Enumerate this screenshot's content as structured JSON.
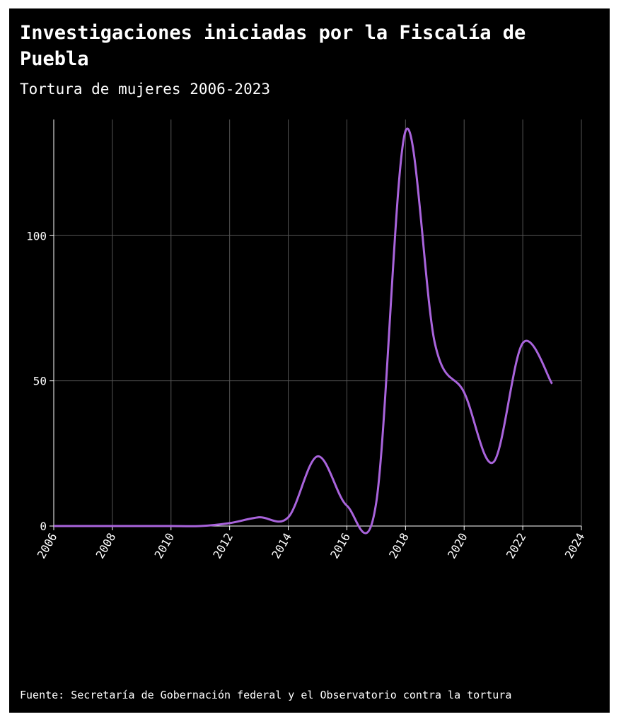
{
  "chart_data": {
    "type": "line",
    "title": [
      "Investigaciones iniciadas por la Fiscalía de",
      "Puebla"
    ],
    "subtitle": "Tortura de mujeres 2006-2023",
    "source": "Fuente: Secretaría de Gobernación federal y el Observatorio contra la tortura",
    "x": [
      2006,
      2007,
      2008,
      2009,
      2010,
      2011,
      2012,
      2013,
      2014,
      2015,
      2016,
      2017,
      2018,
      2019,
      2020,
      2021,
      2022,
      2023
    ],
    "series": [
      {
        "name": "Tortura de mujeres",
        "color": "#a964dc",
        "values": [
          0,
          0,
          0,
          0,
          0,
          0,
          1,
          3,
          3,
          24,
          7,
          8,
          136,
          63,
          46,
          22,
          63,
          49
        ]
      }
    ],
    "xlim": [
      2006,
      2024
    ],
    "xticks": [
      2006,
      2008,
      2010,
      2012,
      2014,
      2016,
      2018,
      2020,
      2022,
      2024
    ],
    "ylim": [
      0,
      140
    ],
    "yticks": [
      0,
      50,
      100
    ],
    "grid": true
  }
}
